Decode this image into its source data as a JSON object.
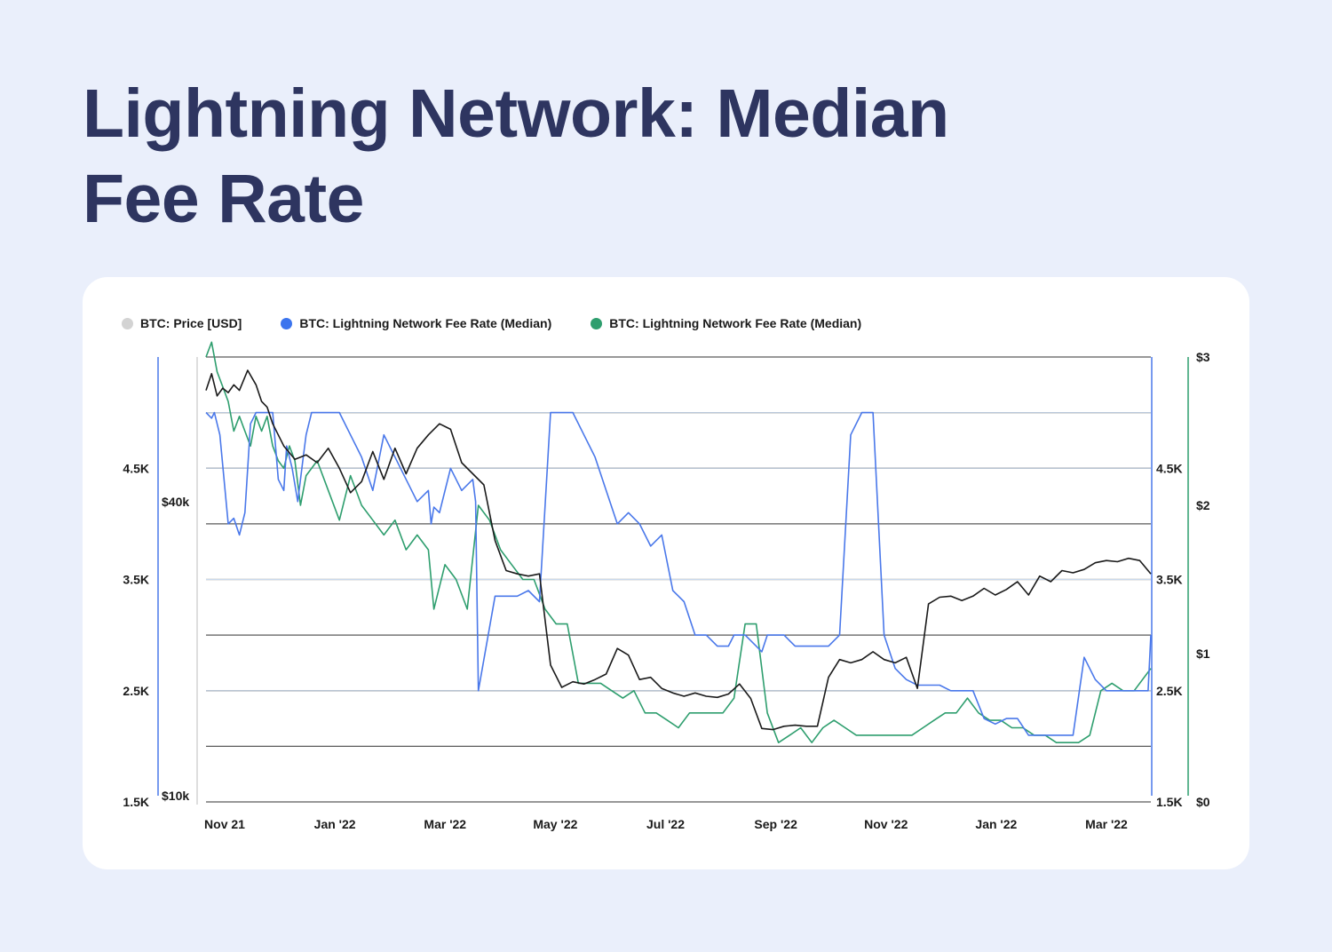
{
  "page": {
    "title": "Lightning Network: Median Fee Rate"
  },
  "colors": {
    "background": "#eaeffb",
    "title": "#2e3560",
    "card": "#ffffff",
    "price": "#1a1a1a",
    "price_legend": "#d3d3d3",
    "fee_blue": "#4a78ea",
    "fee_green": "#2e9e6e",
    "grid_dark": "#5a5a5a",
    "grid_light": "#c9d9ec"
  },
  "legend": [
    {
      "label": "BTC: Price [USD]",
      "color": "#d3d3d3"
    },
    {
      "label": "BTC: Lightning Network Fee Rate (Median)",
      "color": "#3b74ee"
    },
    {
      "label": "BTC: Lightning Network Fee Rate (Median)",
      "color": "#2e9e6e"
    }
  ],
  "chart_data": {
    "type": "line",
    "title": "Lightning Network: Median Fee Rate",
    "grid": true,
    "legend_position": "top-left",
    "x_ticks": [
      "Nov 21",
      "Jan '22",
      "Mar '22",
      "May '22",
      "Jul '22",
      "Sep '22",
      "Nov '22",
      "Jan '22",
      "Mar '22"
    ],
    "x_range": [
      0,
      17
    ],
    "axes": {
      "left_outer": {
        "ticks": [
          "4.5K",
          "3.5K",
          "2.5K",
          "1.5K"
        ],
        "range": [
          1500,
          5500
        ]
      },
      "left_inner": {
        "ticks": [
          "$40k",
          "$10k"
        ],
        "range": [
          10000,
          50000
        ]
      },
      "right_inner": {
        "ticks": [
          "4.5K",
          "3.5K",
          "2.5K",
          "1.5K"
        ],
        "range": [
          1500,
          5500
        ]
      },
      "right_outer": {
        "ticks": [
          "$3",
          "$2",
          "$1",
          "$0"
        ],
        "range": [
          0,
          3
        ]
      }
    },
    "series": [
      {
        "name": "BTC: Price [USD]",
        "axis": "left_inner",
        "x": [
          0,
          0.1,
          0.2,
          0.3,
          0.4,
          0.5,
          0.6,
          0.75,
          0.9,
          1.0,
          1.1,
          1.2,
          1.4,
          1.6,
          1.8,
          2.0,
          2.2,
          2.4,
          2.6,
          2.8,
          3.0,
          3.2,
          3.4,
          3.6,
          3.8,
          4.0,
          4.2,
          4.4,
          4.6,
          4.8,
          5.0,
          5.2,
          5.4,
          5.6,
          5.8,
          6.0,
          6.2,
          6.4,
          6.6,
          6.8,
          7.0,
          7.2,
          7.4,
          7.6,
          7.8,
          8.0,
          8.2,
          8.4,
          8.6,
          8.8,
          9.0,
          9.2,
          9.4,
          9.6,
          9.8,
          10.0,
          10.2,
          10.4,
          10.6,
          10.8,
          11.0,
          11.2,
          11.4,
          11.6,
          11.8,
          12.0,
          12.2,
          12.4,
          12.6,
          12.8,
          13.0,
          13.2,
          13.4,
          13.6,
          13.8,
          14.0,
          14.2,
          14.4,
          14.6,
          14.8,
          15.0,
          15.2,
          15.4,
          15.6,
          15.8,
          16.0,
          16.2,
          16.4,
          16.6,
          16.8,
          17.0
        ],
        "y": [
          47000,
          48500,
          46500,
          47200,
          46800,
          47500,
          47000,
          48800,
          47500,
          46000,
          45500,
          44000,
          42000,
          40800,
          41200,
          40500,
          41800,
          40000,
          37800,
          38800,
          41500,
          39000,
          41800,
          39500,
          41800,
          43000,
          44000,
          43500,
          40500,
          39500,
          38500,
          33500,
          30800,
          30500,
          30300,
          30500,
          22300,
          20300,
          20800,
          20600,
          21000,
          21500,
          23800,
          23200,
          21000,
          21200,
          20200,
          19800,
          19500,
          19800,
          19500,
          19400,
          19700,
          20600,
          19300,
          16600,
          16500,
          16800,
          16900,
          16800,
          16800,
          21200,
          22800,
          22500,
          22800,
          23500,
          22800,
          22500,
          23000,
          20200,
          27800,
          28400,
          28500,
          28100,
          28500,
          29200,
          28600,
          29100,
          29800,
          28600,
          30300,
          29800,
          30800,
          30600,
          30900,
          31500,
          31700,
          31600,
          31900,
          31700,
          30500
        ]
      },
      {
        "name": "BTC: Lightning Network Fee Rate (Median)",
        "axis": "left_outer",
        "x": [
          0,
          0.1,
          0.15,
          0.25,
          0.4,
          0.5,
          0.6,
          0.7,
          0.8,
          0.9,
          1.0,
          1.1,
          1.2,
          1.3,
          1.4,
          1.45,
          1.55,
          1.65,
          1.75,
          1.8,
          1.9,
          2.0,
          2.1,
          2.2,
          2.4,
          2.6,
          2.8,
          3.0,
          3.2,
          3.4,
          3.6,
          3.8,
          4.0,
          4.05,
          4.1,
          4.2,
          4.4,
          4.6,
          4.8,
          4.85,
          4.9,
          5.2,
          5.6,
          5.8,
          6.0,
          6.2,
          6.4,
          6.6,
          6.8,
          7.0,
          7.2,
          7.4,
          7.6,
          7.8,
          8.0,
          8.2,
          8.4,
          8.6,
          8.8,
          9.0,
          9.2,
          9.4,
          9.5,
          9.7,
          9.9,
          10.0,
          10.1,
          10.2,
          10.4,
          10.6,
          10.8,
          11.0,
          11.2,
          11.4,
          11.6,
          11.8,
          12.0,
          12.2,
          12.4,
          12.6,
          12.8,
          13.0,
          13.2,
          13.4,
          13.6,
          13.8,
          14.0,
          14.2,
          14.4,
          14.6,
          14.8,
          15.0,
          15.2,
          15.4,
          15.6,
          15.8,
          16.0,
          16.2,
          16.4,
          16.6,
          16.8,
          16.95,
          17.0
        ],
        "y": [
          5000,
          4950,
          5000,
          4800,
          4000,
          4050,
          3900,
          4100,
          4900,
          5000,
          5000,
          5000,
          5000,
          4400,
          4300,
          4700,
          4500,
          4200,
          4600,
          4800,
          5000,
          5000,
          5000,
          5000,
          5000,
          4800,
          4600,
          4300,
          4800,
          4600,
          4400,
          4200,
          4300,
          4000,
          4150,
          4100,
          4500,
          4300,
          4400,
          4200,
          2500,
          3350,
          3350,
          3400,
          3300,
          5000,
          5000,
          5000,
          4800,
          4600,
          4300,
          4000,
          4100,
          4000,
          3800,
          3900,
          3400,
          3300,
          3000,
          3000,
          2900,
          2900,
          3000,
          3000,
          2900,
          2850,
          3000,
          3000,
          3000,
          2900,
          2900,
          2900,
          2900,
          3000,
          4800,
          5000,
          5000,
          3000,
          2700,
          2600,
          2550,
          2550,
          2550,
          2500,
          2500,
          2500,
          2250,
          2200,
          2250,
          2250,
          2100,
          2100,
          2100,
          2100,
          2100,
          2800,
          2600,
          2500,
          2500,
          2500,
          2500,
          2500,
          3000
        ]
      },
      {
        "name": "BTC: Lightning Network Fee Rate (Median)",
        "axis": "right_outer",
        "x": [
          0,
          0.1,
          0.2,
          0.3,
          0.4,
          0.5,
          0.6,
          0.7,
          0.8,
          0.9,
          1.0,
          1.1,
          1.2,
          1.3,
          1.4,
          1.5,
          1.6,
          1.7,
          1.8,
          2.0,
          2.2,
          2.4,
          2.6,
          2.8,
          3.0,
          3.2,
          3.4,
          3.6,
          3.8,
          4.0,
          4.1,
          4.3,
          4.5,
          4.7,
          4.9,
          5.1,
          5.3,
          5.5,
          5.7,
          5.9,
          6.1,
          6.3,
          6.5,
          6.7,
          6.9,
          7.1,
          7.3,
          7.5,
          7.7,
          7.9,
          8.1,
          8.3,
          8.5,
          8.7,
          8.9,
          9.1,
          9.3,
          9.5,
          9.7,
          9.9,
          10.1,
          10.3,
          10.5,
          10.7,
          10.9,
          11.1,
          11.3,
          11.5,
          11.7,
          11.9,
          12.1,
          12.3,
          12.5,
          12.7,
          12.9,
          13.1,
          13.3,
          13.5,
          13.7,
          13.9,
          14.1,
          14.3,
          14.5,
          14.7,
          14.9,
          15.1,
          15.3,
          15.5,
          15.7,
          15.9,
          16.1,
          16.3,
          16.5,
          16.7,
          16.9,
          17.0
        ],
        "y": [
          3.0,
          3.1,
          2.9,
          2.8,
          2.7,
          2.5,
          2.6,
          2.5,
          2.4,
          2.6,
          2.5,
          2.6,
          2.4,
          2.3,
          2.25,
          2.4,
          2.3,
          2.0,
          2.2,
          2.3,
          2.1,
          1.9,
          2.2,
          2.0,
          1.9,
          1.8,
          1.9,
          1.7,
          1.8,
          1.7,
          1.3,
          1.6,
          1.5,
          1.3,
          2.0,
          1.9,
          1.7,
          1.6,
          1.5,
          1.5,
          1.3,
          1.2,
          1.2,
          0.8,
          0.8,
          0.8,
          0.75,
          0.7,
          0.75,
          0.6,
          0.6,
          0.55,
          0.5,
          0.6,
          0.6,
          0.6,
          0.6,
          0.7,
          1.2,
          1.2,
          0.6,
          0.4,
          0.45,
          0.5,
          0.4,
          0.5,
          0.55,
          0.5,
          0.45,
          0.45,
          0.45,
          0.45,
          0.45,
          0.45,
          0.5,
          0.55,
          0.6,
          0.6,
          0.7,
          0.6,
          0.55,
          0.55,
          0.5,
          0.5,
          0.45,
          0.45,
          0.4,
          0.4,
          0.4,
          0.45,
          0.75,
          0.8,
          0.75,
          0.75,
          0.85,
          0.9
        ]
      }
    ]
  }
}
